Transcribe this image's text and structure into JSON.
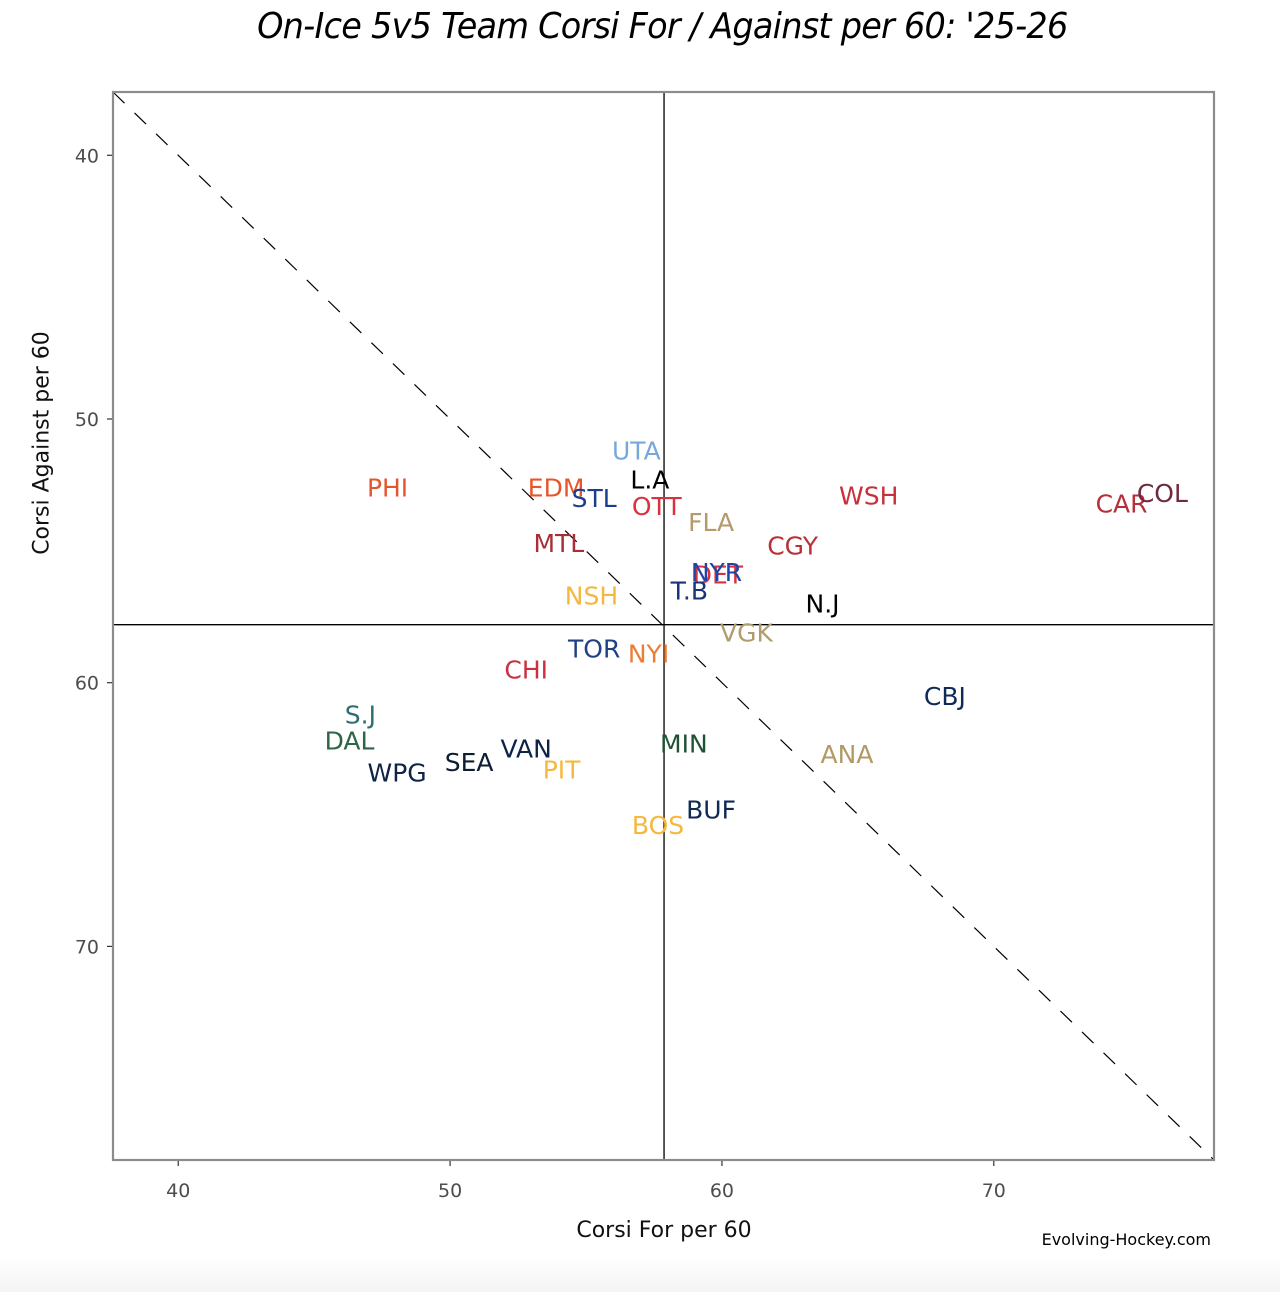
{
  "chart_data": {
    "type": "scatter",
    "title": "On-Ice 5v5 Team Corsi For / Against per 60: '25-26",
    "xlabel": "Corsi For per 60",
    "ylabel": "Corsi Against per 60",
    "xlim": [
      37.6,
      78.1
    ],
    "ylim": [
      37.6,
      78.1
    ],
    "y_reversed": true,
    "x_ticks": [
      40,
      50,
      60,
      70
    ],
    "y_ticks": [
      40,
      50,
      60,
      70
    ],
    "grid": false,
    "reference_lines": {
      "mean_x": 57.87,
      "mean_y": 57.8,
      "diagonal": "y = x (dashed)"
    },
    "credit": "Evolving-Hockey.com",
    "points": [
      {
        "team": "PHI",
        "cf60": 47.7,
        "ca60": 52.6,
        "color": "#E4572E"
      },
      {
        "team": "EDM",
        "cf60": 53.9,
        "ca60": 52.6,
        "color": "#E8552A"
      },
      {
        "team": "STL",
        "cf60": 55.3,
        "ca60": 53.0,
        "color": "#1B3D8F"
      },
      {
        "team": "UTA",
        "cf60": 56.85,
        "ca60": 51.2,
        "color": "#76A8DC"
      },
      {
        "team": "L.A",
        "cf60": 57.35,
        "ca60": 52.3,
        "color": "#000000"
      },
      {
        "team": "OTT",
        "cf60": 57.6,
        "ca60": 53.3,
        "color": "#D7333F"
      },
      {
        "team": "MTL",
        "cf60": 54.0,
        "ca60": 54.7,
        "color": "#A82F36"
      },
      {
        "team": "FLA",
        "cf60": 59.6,
        "ca60": 53.9,
        "color": "#B6996A"
      },
      {
        "team": "WSH",
        "cf60": 65.4,
        "ca60": 52.9,
        "color": "#C8313C"
      },
      {
        "team": "CAR",
        "cf60": 74.7,
        "ca60": 53.2,
        "color": "#B5303A"
      },
      {
        "team": "COL",
        "cf60": 76.2,
        "ca60": 52.8,
        "color": "#6F2A3E"
      },
      {
        "team": "CGY",
        "cf60": 62.6,
        "ca60": 54.8,
        "color": "#B93037"
      },
      {
        "team": "DET",
        "cf60": 59.85,
        "ca60": 55.9,
        "color": "#D7333F"
      },
      {
        "team": "NYR",
        "cf60": 59.8,
        "ca60": 55.8,
        "color": "#1F44A8"
      },
      {
        "team": "T.B",
        "cf60": 58.8,
        "ca60": 56.5,
        "color": "#173479"
      },
      {
        "team": "NSH",
        "cf60": 55.2,
        "ca60": 56.7,
        "color": "#F5B73E"
      },
      {
        "team": "N.J",
        "cf60": 63.7,
        "ca60": 57.0,
        "color": "#000000"
      },
      {
        "team": "VGK",
        "cf60": 60.9,
        "ca60": 58.1,
        "color": "#B19C6E"
      },
      {
        "team": "TOR",
        "cf60": 55.3,
        "ca60": 58.7,
        "color": "#1F4286"
      },
      {
        "team": "NYI",
        "cf60": 57.3,
        "ca60": 58.9,
        "color": "#EC7D35"
      },
      {
        "team": "CHI",
        "cf60": 52.8,
        "ca60": 59.5,
        "color": "#CC2F3E"
      },
      {
        "team": "CBJ",
        "cf60": 68.2,
        "ca60": 60.5,
        "color": "#0E2A55"
      },
      {
        "team": "S.J",
        "cf60": 46.7,
        "ca60": 61.2,
        "color": "#2E6E72"
      },
      {
        "team": "DAL",
        "cf60": 46.3,
        "ca60": 62.2,
        "color": "#2D6546"
      },
      {
        "team": "MIN",
        "cf60": 58.6,
        "ca60": 62.3,
        "color": "#1F5233"
      },
      {
        "team": "VAN",
        "cf60": 52.8,
        "ca60": 62.5,
        "color": "#0E2346"
      },
      {
        "team": "ANA",
        "cf60": 64.6,
        "ca60": 62.7,
        "color": "#B29A65"
      },
      {
        "team": "SEA",
        "cf60": 50.7,
        "ca60": 63.0,
        "color": "#0D1E33"
      },
      {
        "team": "PIT",
        "cf60": 54.1,
        "ca60": 63.3,
        "color": "#F6B93F"
      },
      {
        "team": "WPG",
        "cf60": 48.05,
        "ca60": 63.4,
        "color": "#0F2247"
      },
      {
        "team": "BUF",
        "cf60": 59.6,
        "ca60": 64.8,
        "color": "#0F2A55"
      },
      {
        "team": "BOS",
        "cf60": 57.65,
        "ca60": 65.4,
        "color": "#F5B83C"
      }
    ]
  }
}
